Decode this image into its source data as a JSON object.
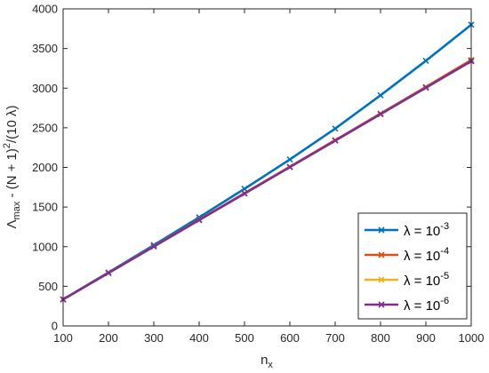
{
  "chart_data": {
    "type": "line",
    "x": [
      100,
      200,
      300,
      400,
      500,
      600,
      700,
      800,
      900,
      1000
    ],
    "xlim": [
      100,
      1000
    ],
    "ylim": [
      0,
      4000
    ],
    "xticks": [
      100,
      200,
      300,
      400,
      500,
      600,
      700,
      800,
      900,
      1000
    ],
    "yticks": [
      0,
      500,
      1000,
      1500,
      2000,
      2500,
      3000,
      3500,
      4000
    ],
    "xlabel": {
      "base": "n",
      "sub": "x"
    },
    "ylabel": {
      "lambda": "Λ",
      "sub": "max",
      "mid": " - (N + 1)",
      "sup": "2",
      "tail": "/(10 λ)"
    },
    "grid": false,
    "box": true,
    "legend_position": "bottom-right",
    "marker": "x",
    "series": [
      {
        "name": "λ = 10^-3",
        "legend_base": "λ = 10",
        "legend_exp": "-3",
        "color": "#0072BD",
        "values": [
          336,
          675,
          1020,
          1370,
          1730,
          2100,
          2490,
          2910,
          3345,
          3800
        ]
      },
      {
        "name": "λ = 10^-4",
        "legend_base": "λ = 10",
        "legend_exp": "-4",
        "color": "#D95319",
        "values": [
          334,
          669,
          1004,
          1340,
          1675,
          2009,
          2344,
          2680,
          3015,
          3355
        ]
      },
      {
        "name": "λ = 10^-5",
        "legend_base": "λ = 10",
        "legend_exp": "-5",
        "color": "#EDB120",
        "values": [
          334,
          668,
          1002,
          1336,
          1670,
          2004,
          2338,
          2672,
          3006,
          3340
        ]
      },
      {
        "name": "λ = 10^-6",
        "legend_base": "λ = 10",
        "legend_exp": "-6",
        "color": "#7E2F8E",
        "values": [
          334,
          668,
          1002,
          1336,
          1670,
          2004,
          2338,
          2672,
          3006,
          3340
        ]
      }
    ]
  }
}
